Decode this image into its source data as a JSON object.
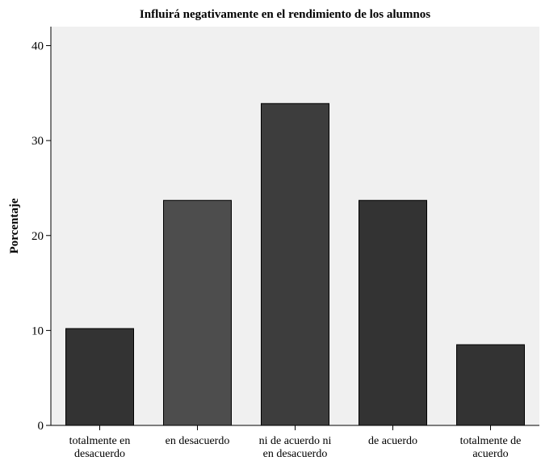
{
  "chart_data": {
    "type": "bar",
    "title": "Influirá negativamente en el rendimiento de los alumnos",
    "xlabel": "",
    "ylabel": "Porcentaje",
    "ylim": [
      0,
      42
    ],
    "yticks": [
      0,
      10,
      20,
      30,
      40
    ],
    "grid": false,
    "categories": [
      [
        "totalmente en",
        "desacuerdo"
      ],
      [
        "en desacuerdo"
      ],
      [
        "ni de acuerdo ni",
        "en desacuerdo"
      ],
      [
        "de acuerdo"
      ],
      [
        "totalmente de",
        "acuerdo"
      ]
    ],
    "values": [
      10.2,
      23.7,
      33.9,
      23.7,
      8.5
    ],
    "colors": [
      "#333333",
      "#4d4d4d",
      "#3d3d3d",
      "#333333",
      "#333333"
    ],
    "plot_background": "#f0f0f0"
  }
}
